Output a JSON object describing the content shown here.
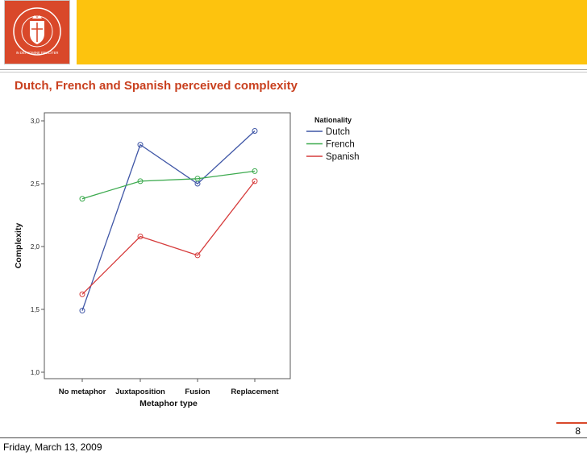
{
  "header": {
    "logo_text": "IN DEI NOMINE FELICITER",
    "slide_title": "Dutch, French and Spanish perceived complexity"
  },
  "footer": {
    "date": "Friday, March 13, 2009",
    "page_number": "8"
  },
  "colors": {
    "accent_red": "#d9482a",
    "header_yellow": "#fdc30e",
    "title_red": "#c9401f"
  },
  "chart_data": {
    "type": "line",
    "title": "",
    "xlabel": "Metaphor type",
    "ylabel": "Complexity",
    "categories": [
      "No metaphor",
      "Juxtaposition",
      "Fusion",
      "Replacement"
    ],
    "ylim": [
      1.0,
      3.0
    ],
    "yticks": [
      "1,0",
      "1,5",
      "2,0",
      "2,5",
      "3,0"
    ],
    "ytick_values": [
      1.0,
      1.5,
      2.0,
      2.5,
      3.0
    ],
    "legend_title": "Nationality",
    "legend_position": "right",
    "grid": false,
    "series": [
      {
        "name": "Dutch",
        "color": "#3f56a6",
        "values": [
          1.49,
          2.81,
          2.5,
          2.92
        ]
      },
      {
        "name": "French",
        "color": "#3caa4e",
        "values": [
          2.38,
          2.52,
          2.54,
          2.6
        ]
      },
      {
        "name": "Spanish",
        "color": "#d63b3b",
        "values": [
          1.62,
          2.08,
          1.93,
          2.52
        ]
      }
    ]
  }
}
